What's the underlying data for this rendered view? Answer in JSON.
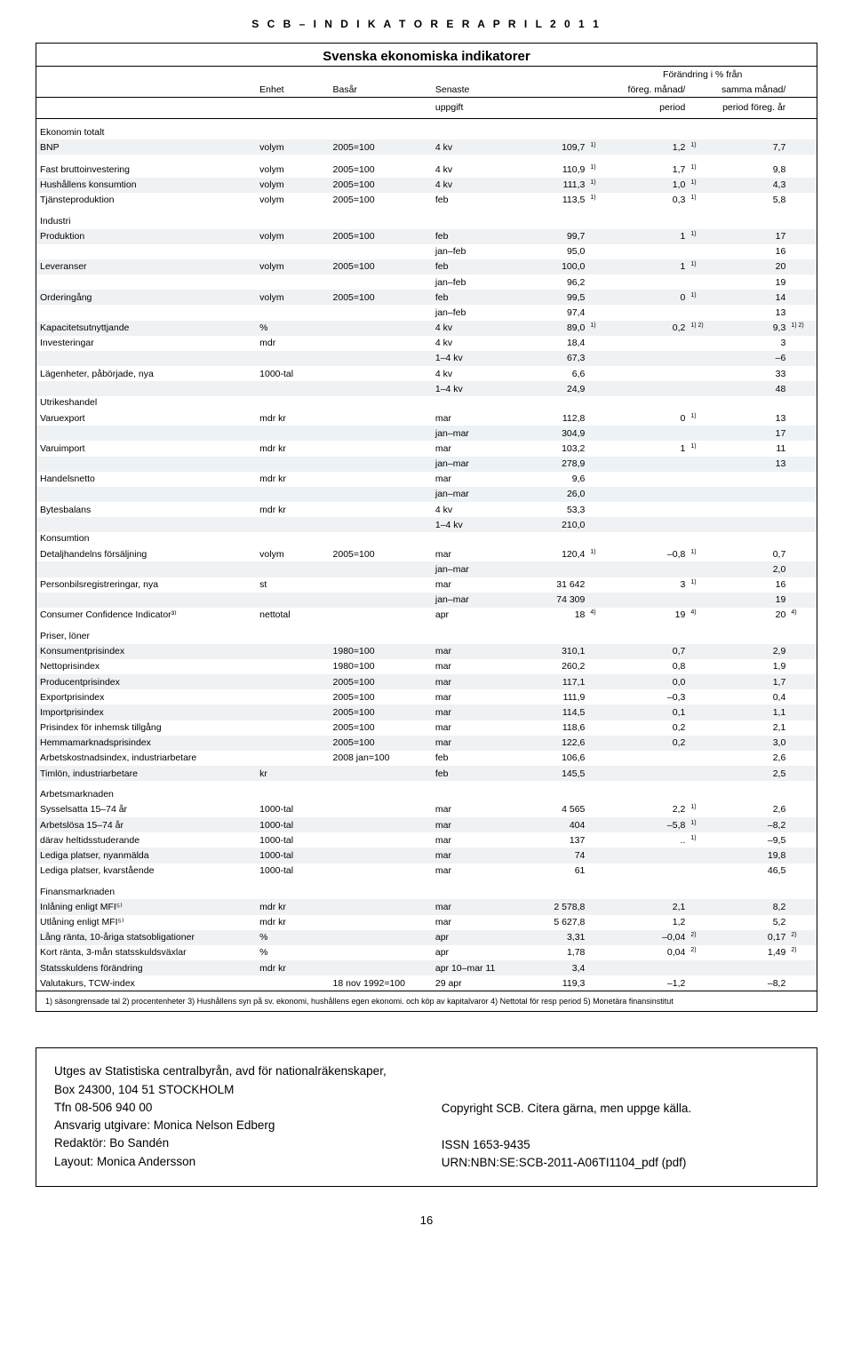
{
  "header_spaced": "S C B – I N D I K A T O R E R   A P R I L   2 0 1 1",
  "box_title": "Svenska ekonomiska indikatorer",
  "head": {
    "enhet": "Enhet",
    "basar": "Basår",
    "senaste": "Senaste",
    "uppgift": "uppgift",
    "forandring": "Förändring i % från",
    "foreg": "föreg. månad/",
    "period": "period",
    "samma": "samma månad/",
    "periodar": "period föreg. år"
  },
  "sections": [
    {
      "name": "Ekonomin totalt",
      "rows": [
        {
          "label": "BNP",
          "enhet": "volym",
          "basar": "2005=100",
          "sen": "4 kv",
          "upp": "109,7",
          "s1": "1)",
          "foreg": "1,2",
          "s2": "1)",
          "samma": "7,7",
          "s3": ""
        }
      ]
    },
    {
      "name": "",
      "spacer": true,
      "rows": [
        {
          "label": "Fast bruttoinvestering",
          "enhet": "volym",
          "basar": "2005=100",
          "sen": "4 kv",
          "upp": "110,9",
          "s1": "1)",
          "foreg": "1,7",
          "s2": "1)",
          "samma": "9,8",
          "s3": ""
        },
        {
          "label": "Hushållens konsumtion",
          "enhet": "volym",
          "basar": "2005=100",
          "sen": "4 kv",
          "upp": "111,3",
          "s1": "1)",
          "foreg": "1,0",
          "s2": "1)",
          "samma": "4,3",
          "s3": ""
        },
        {
          "label": "Tjänsteproduktion",
          "enhet": "volym",
          "basar": "2005=100",
          "sen": "feb",
          "upp": "113,5",
          "s1": "1)",
          "foreg": "0,3",
          "s2": "1)",
          "samma": "5,8",
          "s3": ""
        }
      ]
    },
    {
      "name": "Industri",
      "rows": [
        {
          "label": "Produktion",
          "enhet": "volym",
          "basar": "2005=100",
          "sen": "feb",
          "upp": "99,7",
          "s1": "",
          "foreg": "1",
          "s2": "1)",
          "samma": "17",
          "s3": ""
        },
        {
          "label": "",
          "enhet": "",
          "basar": "",
          "sen": "jan–feb",
          "upp": "95,0",
          "s1": "",
          "foreg": "",
          "s2": "",
          "samma": "16",
          "s3": ""
        },
        {
          "label": "Leveranser",
          "enhet": "volym",
          "basar": "2005=100",
          "sen": "feb",
          "upp": "100,0",
          "s1": "",
          "foreg": "1",
          "s2": "1)",
          "samma": "20",
          "s3": ""
        },
        {
          "label": "",
          "enhet": "",
          "basar": "",
          "sen": "jan–feb",
          "upp": "96,2",
          "s1": "",
          "foreg": "",
          "s2": "",
          "samma": "19",
          "s3": ""
        },
        {
          "label": "Orderingång",
          "enhet": "volym",
          "basar": "2005=100",
          "sen": "feb",
          "upp": "99,5",
          "s1": "",
          "foreg": "0",
          "s2": "1)",
          "samma": "14",
          "s3": ""
        },
        {
          "label": "",
          "enhet": "",
          "basar": "",
          "sen": "jan–feb",
          "upp": "97,4",
          "s1": "",
          "foreg": "",
          "s2": "",
          "samma": "13",
          "s3": ""
        },
        {
          "label": "Kapacitetsutnyttjande",
          "enhet": "%",
          "basar": "",
          "sen": "4 kv",
          "upp": "89,0",
          "s1": "1)",
          "foreg": "0,2",
          "s2": "1) 2)",
          "samma": "9,3",
          "s3": "1) 2)"
        },
        {
          "label": "Investeringar",
          "enhet": "mdr",
          "basar": "",
          "sen": "4 kv",
          "upp": "18,4",
          "s1": "",
          "foreg": "",
          "s2": "",
          "samma": "3",
          "s3": ""
        },
        {
          "label": "",
          "enhet": "",
          "basar": "",
          "sen": "1–4 kv",
          "upp": "67,3",
          "s1": "",
          "foreg": "",
          "s2": "",
          "samma": "–6",
          "s3": ""
        },
        {
          "label": "Lägenheter, påbörjade, nya",
          "enhet": "1000-tal",
          "basar": "",
          "sen": "4 kv",
          "upp": "6,6",
          "s1": "",
          "foreg": "",
          "s2": "",
          "samma": "33",
          "s3": ""
        },
        {
          "label": "",
          "enhet": "",
          "basar": "",
          "sen": "1–4 kv",
          "upp": "24,9",
          "s1": "",
          "foreg": "",
          "s2": "",
          "samma": "48",
          "s3": ""
        }
      ]
    },
    {
      "name": "Utrikeshandel",
      "nospacer": true,
      "rows": [
        {
          "label": "Varuexport",
          "enhet": "mdr kr",
          "basar": "",
          "sen": "mar",
          "upp": "112,8",
          "s1": "",
          "foreg": "0",
          "s2": "1)",
          "samma": "13",
          "s3": ""
        },
        {
          "label": "",
          "enhet": "",
          "basar": "",
          "sen": "jan–mar",
          "upp": "304,9",
          "s1": "",
          "foreg": "",
          "s2": "",
          "samma": "17",
          "s3": ""
        },
        {
          "label": "Varuimport",
          "enhet": "mdr kr",
          "basar": "",
          "sen": "mar",
          "upp": "103,2",
          "s1": "",
          "foreg": "1",
          "s2": "1)",
          "samma": "11",
          "s3": ""
        },
        {
          "label": "",
          "enhet": "",
          "basar": "",
          "sen": "jan–mar",
          "upp": "278,9",
          "s1": "",
          "foreg": "",
          "s2": "",
          "samma": "13",
          "s3": ""
        },
        {
          "label": "Handelsnetto",
          "enhet": "mdr kr",
          "basar": "",
          "sen": "mar",
          "upp": "9,6",
          "s1": "",
          "foreg": "",
          "s2": "",
          "samma": "",
          "s3": ""
        },
        {
          "label": "",
          "enhet": "",
          "basar": "",
          "sen": "jan–mar",
          "upp": "26,0",
          "s1": "",
          "foreg": "",
          "s2": "",
          "samma": "",
          "s3": ""
        },
        {
          "label": "Bytesbalans",
          "enhet": "mdr kr",
          "basar": "",
          "sen": "4 kv",
          "upp": "53,3",
          "s1": "",
          "foreg": "",
          "s2": "",
          "samma": "",
          "s3": ""
        },
        {
          "label": "",
          "enhet": "",
          "basar": "",
          "sen": "1–4 kv",
          "upp": "210,0",
          "s1": "",
          "foreg": "",
          "s2": "",
          "samma": "",
          "s3": ""
        }
      ]
    },
    {
      "name": "Konsumtion",
      "nospacer": true,
      "rows": [
        {
          "label": "Detaljhandelns försäljning",
          "enhet": "volym",
          "basar": "2005=100",
          "sen": "mar",
          "upp": "120,4",
          "s1": "1)",
          "foreg": "–0,8",
          "s2": "1)",
          "samma": "0,7",
          "s3": ""
        },
        {
          "label": "",
          "enhet": "",
          "basar": "",
          "sen": "jan–mar",
          "upp": "",
          "s1": "",
          "foreg": "",
          "s2": "",
          "samma": "2,0",
          "s3": ""
        },
        {
          "label": "Personbilsregistreringar, nya",
          "enhet": "st",
          "basar": "",
          "sen": "mar",
          "upp": "31 642",
          "s1": "",
          "foreg": "3",
          "s2": "1)",
          "samma": "16",
          "s3": ""
        },
        {
          "label": "",
          "enhet": "",
          "basar": "",
          "sen": "jan–mar",
          "upp": "74 309",
          "s1": "",
          "foreg": "",
          "s2": "",
          "samma": "19",
          "s3": ""
        },
        {
          "label": "Consumer Confidence Indicator³⁾",
          "enhet": "nettotal",
          "basar": "",
          "sen": "apr",
          "upp": "18",
          "s1": "4)",
          "foreg": "19",
          "s2": "4)",
          "samma": "20",
          "s3": "4)"
        }
      ]
    },
    {
      "name": "Priser, löner",
      "rows": [
        {
          "label": "Konsumentprisindex",
          "enhet": "",
          "basar": "1980=100",
          "sen": "mar",
          "upp": "310,1",
          "s1": "",
          "foreg": "0,7",
          "s2": "",
          "samma": "2,9",
          "s3": ""
        },
        {
          "label": "Nettoprisindex",
          "enhet": "",
          "basar": "1980=100",
          "sen": "mar",
          "upp": "260,2",
          "s1": "",
          "foreg": "0,8",
          "s2": "",
          "samma": "1,9",
          "s3": ""
        },
        {
          "label": "Producentprisindex",
          "enhet": "",
          "basar": "2005=100",
          "sen": "mar",
          "upp": "117,1",
          "s1": "",
          "foreg": "0,0",
          "s2": "",
          "samma": "1,7",
          "s3": ""
        },
        {
          "label": "Exportprisindex",
          "enhet": "",
          "basar": "2005=100",
          "sen": "mar",
          "upp": "111,9",
          "s1": "",
          "foreg": "–0,3",
          "s2": "",
          "samma": "0,4",
          "s3": ""
        },
        {
          "label": "Importprisindex",
          "enhet": "",
          "basar": "2005=100",
          "sen": "mar",
          "upp": "114,5",
          "s1": "",
          "foreg": "0,1",
          "s2": "",
          "samma": "1,1",
          "s3": ""
        },
        {
          "label": "Prisindex för inhemsk tillgång",
          "enhet": "",
          "basar": "2005=100",
          "sen": "mar",
          "upp": "118,6",
          "s1": "",
          "foreg": "0,2",
          "s2": "",
          "samma": "2,1",
          "s3": ""
        },
        {
          "label": "Hemmamarknadsprisindex",
          "enhet": "",
          "basar": "2005=100",
          "sen": "mar",
          "upp": "122,6",
          "s1": "",
          "foreg": "0,2",
          "s2": "",
          "samma": "3,0",
          "s3": ""
        },
        {
          "label": "Arbetskostnadsindex, industriarbetare",
          "enhet": "",
          "basar": "2008 jan=100",
          "sen": "feb",
          "upp": "106,6",
          "s1": "",
          "foreg": "",
          "s2": "",
          "samma": "2,6",
          "s3": ""
        },
        {
          "label": "Timlön, industriarbetare",
          "enhet": "kr",
          "basar": "",
          "sen": "feb",
          "upp": "145,5",
          "s1": "",
          "foreg": "",
          "s2": "",
          "samma": "2,5",
          "s3": ""
        }
      ]
    },
    {
      "name": "Arbetsmarknaden",
      "rows": [
        {
          "label": "Sysselsatta 15–74 år",
          "enhet": "1000-tal",
          "basar": "",
          "sen": "mar",
          "upp": "4 565",
          "s1": "",
          "foreg": "2,2",
          "s2": "1)",
          "samma": "2,6",
          "s3": ""
        },
        {
          "label": "Arbetslösa 15–74 år",
          "enhet": "1000-tal",
          "basar": "",
          "sen": "mar",
          "upp": "404",
          "s1": "",
          "foreg": "–5,8",
          "s2": "1)",
          "samma": "–8,2",
          "s3": ""
        },
        {
          "label": "därav heltidsstuderande",
          "enhet": "1000-tal",
          "basar": "",
          "sen": "mar",
          "upp": "137",
          "s1": "",
          "foreg": "..",
          "s2": "1)",
          "samma": "–9,5",
          "s3": ""
        },
        {
          "label": "Lediga platser, nyanmälda",
          "enhet": "1000-tal",
          "basar": "",
          "sen": "mar",
          "upp": "74",
          "s1": "",
          "foreg": "",
          "s2": "",
          "samma": "19,8",
          "s3": ""
        },
        {
          "label": "Lediga platser, kvarstående",
          "enhet": "1000-tal",
          "basar": "",
          "sen": "mar",
          "upp": "61",
          "s1": "",
          "foreg": "",
          "s2": "",
          "samma": "46,5",
          "s3": ""
        }
      ]
    },
    {
      "name": "Finansmarknaden",
      "rows": [
        {
          "label": "Inlåning enligt MFI⁵⁾",
          "enhet": "mdr kr",
          "basar": "",
          "sen": "mar",
          "upp": "2 578,8",
          "s1": "",
          "foreg": "2,1",
          "s2": "",
          "samma": "8,2",
          "s3": ""
        },
        {
          "label": "Utlåning enligt MFI⁵⁾",
          "enhet": "mdr kr",
          "basar": "",
          "sen": "mar",
          "upp": "5 627,8",
          "s1": "",
          "foreg": "1,2",
          "s2": "",
          "samma": "5,2",
          "s3": ""
        },
        {
          "label": "Lång ränta, 10-åriga statsobligationer",
          "enhet": "%",
          "basar": "",
          "sen": "apr",
          "upp": "3,31",
          "s1": "",
          "foreg": "–0,04",
          "s2": "2)",
          "samma": "0,17",
          "s3": "2)"
        },
        {
          "label": "Kort ränta, 3-mån statsskuldsväxlar",
          "enhet": "%",
          "basar": "",
          "sen": "apr",
          "upp": "1,78",
          "s1": "",
          "foreg": "0,04",
          "s2": "2)",
          "samma": "1,49",
          "s3": "2)"
        },
        {
          "label": "Statsskuldens förändring",
          "enhet": "mdr kr",
          "basar": "",
          "sen": "apr 10–mar 11",
          "upp": "3,4",
          "s1": "",
          "foreg": "",
          "s2": "",
          "samma": "",
          "s3": ""
        },
        {
          "label": "Valutakurs, TCW-index",
          "enhet": "",
          "basar": "18 nov 1992=100",
          "sen": "29 apr",
          "upp": "119,3",
          "s1": "",
          "foreg": "–1,2",
          "s2": "",
          "samma": "–8,2",
          "s3": ""
        }
      ]
    }
  ],
  "footnotes": "1) säsongrensade tal   2) procentenheter   3) Hushållens syn på sv. ekonomi, hushållens egen ekonomi. och köp av kapitalvaror   4) Nettotal för resp period   5) Monetära finansinstitut",
  "footer": {
    "l1": "Utges av Statistiska centralbyrån, avd för nationalräkenskaper,",
    "l2": "Box 24300, 104 51 STOCKHOLM",
    "l3": "Tfn 08-506 940 00",
    "l4": "Ansvarig utgivare: Monica Nelson Edberg",
    "l5": "Redaktör: Bo Sandén",
    "l6": "Layout: Monica Andersson",
    "r1": "Copyright SCB. Citera gärna, men uppge källa.",
    "r2": "ISSN 1653-9435",
    "r3": "URN:NBN:SE:SCB-2011-A06TI1104_pdf (pdf)"
  },
  "page_num": "16",
  "stripe_color": "#eef2f4"
}
